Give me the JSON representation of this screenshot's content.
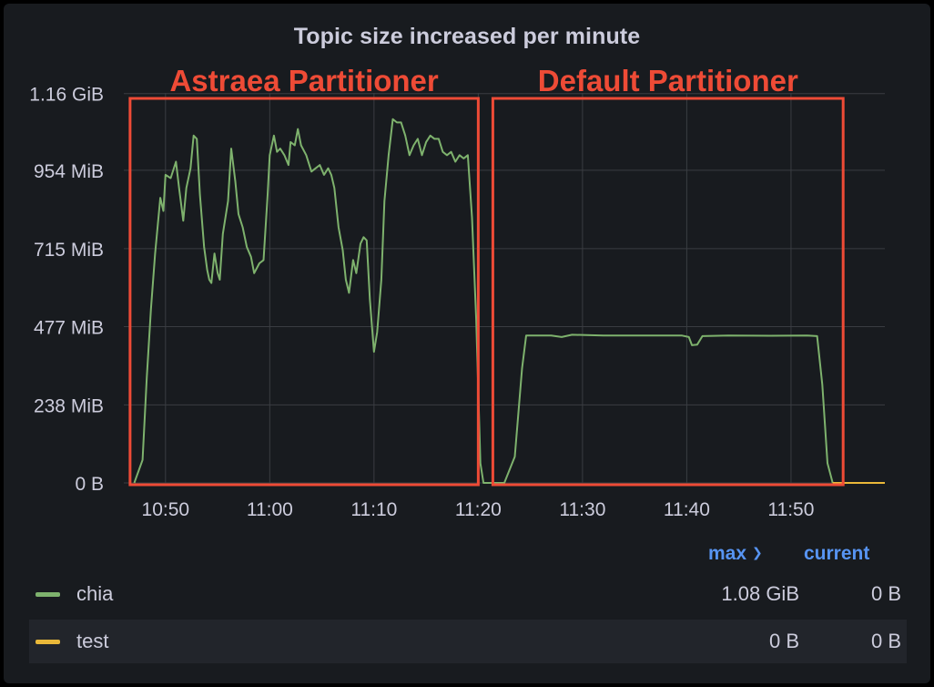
{
  "panel": {
    "title": "Topic size increased per minute"
  },
  "annotations": [
    {
      "label": "Astraea Partitioner",
      "color": "#ee4b36"
    },
    {
      "label": "Default Partitioner",
      "color": "#ee4b36"
    }
  ],
  "chart_data": {
    "type": "line",
    "title": "Topic size increased per minute",
    "xlabel": "",
    "ylabel": "",
    "x_range": [
      "10:46",
      "11:59"
    ],
    "ylim_mib": [
      0,
      1190
    ],
    "y_ticks": [
      {
        "label": "0 B",
        "mib": 0
      },
      {
        "label": "238 MiB",
        "mib": 238
      },
      {
        "label": "477 MiB",
        "mib": 477
      },
      {
        "label": "715 MiB",
        "mib": 715
      },
      {
        "label": "954 MiB",
        "mib": 954
      },
      {
        "label": "1.16 GiB",
        "mib": 1188
      }
    ],
    "x_ticks": [
      "10:50",
      "11:00",
      "11:10",
      "11:20",
      "11:30",
      "11:40",
      "11:50"
    ],
    "grid": true,
    "series": [
      {
        "name": "chia",
        "color": "#7eb26d",
        "unit": "MiB",
        "points": [
          [
            "10:47",
            0
          ],
          [
            "10:47.8",
            70
          ],
          [
            "10:48.2",
            320
          ],
          [
            "10:48.6",
            530
          ],
          [
            "10:49",
            700
          ],
          [
            "10:49.5",
            870
          ],
          [
            "10:49.8",
            830
          ],
          [
            "10:50",
            940
          ],
          [
            "10:50.5",
            930
          ],
          [
            "10:51",
            980
          ],
          [
            "10:51.3",
            900
          ],
          [
            "10:51.7",
            800
          ],
          [
            "10:52",
            900
          ],
          [
            "10:52.4",
            960
          ],
          [
            "10:52.7",
            1060
          ],
          [
            "10:53",
            1050
          ],
          [
            "10:53.3",
            880
          ],
          [
            "10:53.7",
            720
          ],
          [
            "10:54",
            650
          ],
          [
            "10:54.2",
            620
          ],
          [
            "10:54.4",
            610
          ],
          [
            "10:54.7",
            700
          ],
          [
            "10:55",
            640
          ],
          [
            "10:55.2",
            620
          ],
          [
            "10:55.5",
            760
          ],
          [
            "10:56",
            860
          ],
          [
            "10:56.3",
            1020
          ],
          [
            "10:56.7",
            920
          ],
          [
            "10:57",
            820
          ],
          [
            "10:57.4",
            780
          ],
          [
            "10:57.8",
            720
          ],
          [
            "10:58.2",
            690
          ],
          [
            "10:58.5",
            640
          ],
          [
            "10:59",
            670
          ],
          [
            "10:59.4",
            680
          ],
          [
            "10:59.8",
            880
          ],
          [
            "11:00",
            1000
          ],
          [
            "11:00.4",
            1060
          ],
          [
            "11:00.7",
            1010
          ],
          [
            "11:01",
            1020
          ],
          [
            "11:01.4",
            1000
          ],
          [
            "11:01.8",
            970
          ],
          [
            "11:02",
            1040
          ],
          [
            "11:02.4",
            1030
          ],
          [
            "11:02.7",
            1080
          ],
          [
            "11:03",
            1030
          ],
          [
            "11:03.5",
            1000
          ],
          [
            "11:04",
            950
          ],
          [
            "11:04.4",
            960
          ],
          [
            "11:04.8",
            970
          ],
          [
            "11:05.2",
            940
          ],
          [
            "11:05.6",
            960
          ],
          [
            "11:05.9",
            940
          ],
          [
            "11:06.2",
            900
          ],
          [
            "11:06.6",
            780
          ],
          [
            "11:07",
            710
          ],
          [
            "11:07.3",
            620
          ],
          [
            "11:07.6",
            580
          ],
          [
            "11:08",
            680
          ],
          [
            "11:08.3",
            640
          ],
          [
            "11:08.7",
            730
          ],
          [
            "11:09",
            750
          ],
          [
            "11:09.3",
            740
          ],
          [
            "11:09.6",
            560
          ],
          [
            "11:10",
            400
          ],
          [
            "11:10.3",
            460
          ],
          [
            "11:10.7",
            620
          ],
          [
            "11:11",
            860
          ],
          [
            "11:11.4",
            1000
          ],
          [
            "11:11.8",
            1110
          ],
          [
            "11:12.2",
            1100
          ],
          [
            "11:12.6",
            1100
          ],
          [
            "11:13",
            1060
          ],
          [
            "11:13.4",
            1000
          ],
          [
            "11:13.8",
            1030
          ],
          [
            "11:14.2",
            1050
          ],
          [
            "11:14.6",
            1000
          ],
          [
            "11:15",
            1040
          ],
          [
            "11:15.4",
            1060
          ],
          [
            "11:15.8",
            1050
          ],
          [
            "11:16.2",
            1050
          ],
          [
            "11:16.6",
            1010
          ],
          [
            "11:17",
            1000
          ],
          [
            "11:17.4",
            1010
          ],
          [
            "11:17.8",
            980
          ],
          [
            "11:18.2",
            1000
          ],
          [
            "11:18.6",
            990
          ],
          [
            "11:19",
            1000
          ],
          [
            "11:19.4",
            810
          ],
          [
            "11:19.8",
            500
          ],
          [
            "11:20.2",
            60
          ],
          [
            "11:20.5",
            0
          ],
          [
            "11:22.5",
            0
          ],
          [
            "11:23.5",
            80
          ],
          [
            "11:24.2",
            350
          ],
          [
            "11:24.6",
            450
          ],
          [
            "11:25.5",
            450
          ],
          [
            "11:27",
            450
          ],
          [
            "11:28",
            445
          ],
          [
            "11:29",
            452
          ],
          [
            "11:32",
            450
          ],
          [
            "11:36",
            450
          ],
          [
            "11:39.5",
            450
          ],
          [
            "11:40.2",
            445
          ],
          [
            "11:40.5",
            420
          ],
          [
            "11:41",
            422
          ],
          [
            "11:41.5",
            448
          ],
          [
            "11:44",
            450
          ],
          [
            "11:48",
            449
          ],
          [
            "11:51.5",
            450
          ],
          [
            "11:52.5",
            448
          ],
          [
            "11:53",
            300
          ],
          [
            "11:53.5",
            60
          ],
          [
            "11:54",
            0
          ]
        ]
      },
      {
        "name": "test",
        "color": "#eab839",
        "unit": "MiB",
        "points": [
          [
            "11:54",
            0
          ],
          [
            "11:59",
            0
          ]
        ]
      }
    ]
  },
  "legend": {
    "columns": {
      "max": "max",
      "current": "current"
    },
    "rows": [
      {
        "name": "chia",
        "color": "#7eb26d",
        "max": "1.08 GiB",
        "current": "0 B"
      },
      {
        "name": "test",
        "color": "#eab839",
        "max": "0 B",
        "current": "0 B"
      }
    ]
  }
}
